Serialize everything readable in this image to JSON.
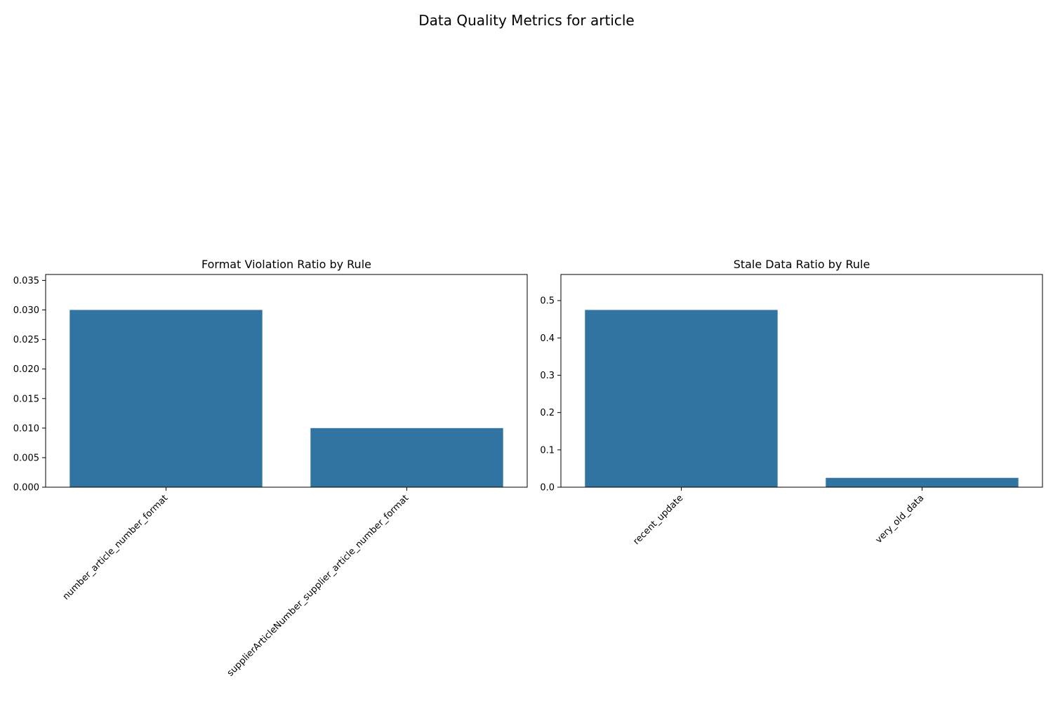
{
  "figure": {
    "title": "Data Quality Metrics for article"
  },
  "chart_data": [
    {
      "type": "bar",
      "title": "Format Violation Ratio by Rule",
      "xlabel": "",
      "ylabel": "",
      "categories": [
        "number_article_number_format",
        "supplierArticleNumber_supplier_article_number_format"
      ],
      "values": [
        0.03,
        0.01
      ],
      "ylim": [
        0,
        0.036
      ],
      "yticks": [
        0.0,
        0.005,
        0.01,
        0.015,
        0.02,
        0.025,
        0.03,
        0.035
      ],
      "ytick_labels": [
        "0.000",
        "0.005",
        "0.010",
        "0.015",
        "0.020",
        "0.025",
        "0.030",
        "0.035"
      ],
      "color": "#3274a1",
      "grid": false,
      "legend": "none"
    },
    {
      "type": "bar",
      "title": "Stale Data Ratio by Rule",
      "xlabel": "",
      "ylabel": "",
      "categories": [
        "recent_update",
        "very_old_data"
      ],
      "values": [
        0.475,
        0.025
      ],
      "ylim": [
        0,
        0.57
      ],
      "yticks": [
        0.0,
        0.1,
        0.2,
        0.3,
        0.4,
        0.5
      ],
      "ytick_labels": [
        "0.0",
        "0.1",
        "0.2",
        "0.3",
        "0.4",
        "0.5"
      ],
      "color": "#3274a1",
      "grid": false,
      "legend": "none"
    }
  ]
}
